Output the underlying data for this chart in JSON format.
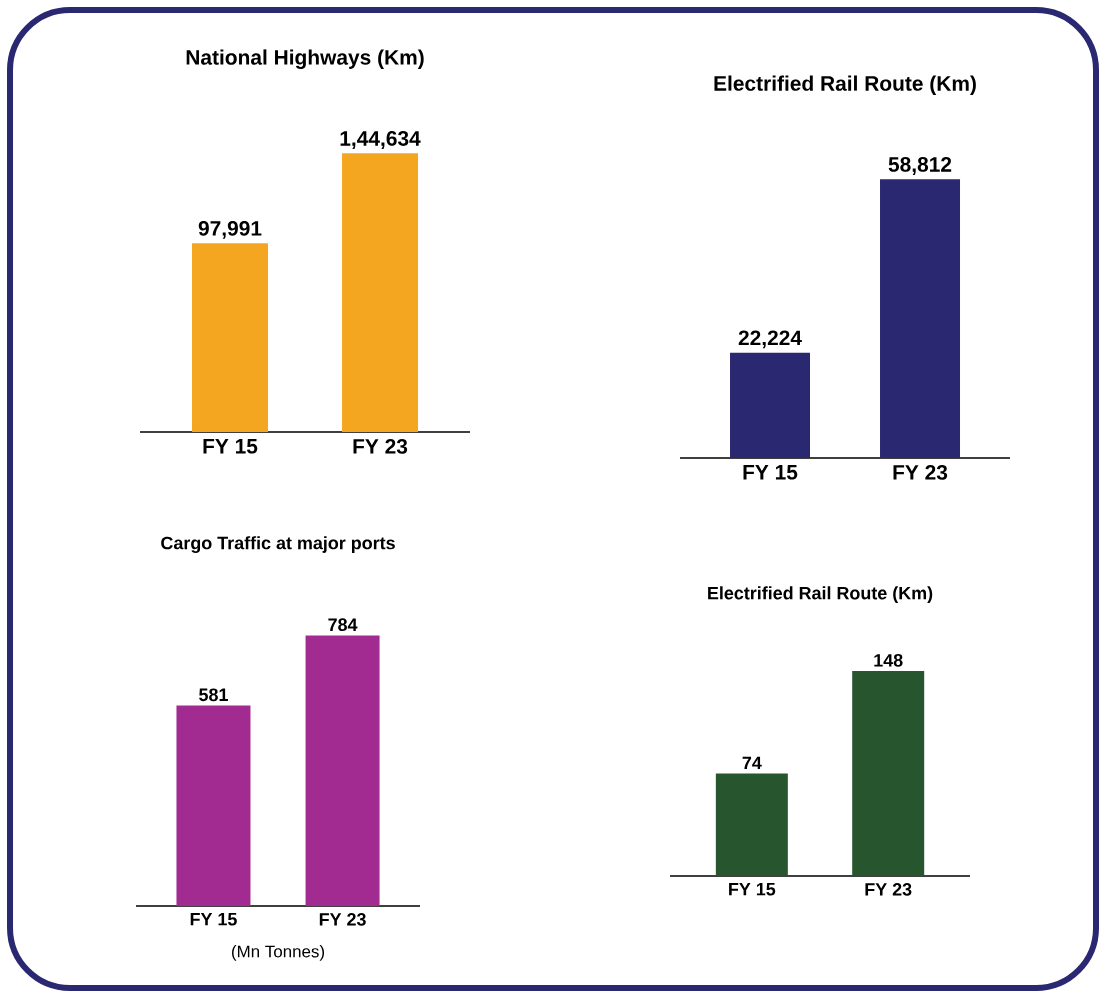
{
  "chart_data": [
    {
      "type": "bar",
      "title": "National Highways (Km)",
      "categories": [
        "FY 15",
        "FY 23"
      ],
      "values": [
        97991,
        144634
      ],
      "value_labels": [
        "97,991",
        "1,44,634"
      ],
      "color": "#f4a621"
    },
    {
      "type": "bar",
      "title": "Electrified Rail Route (Km)",
      "categories": [
        "FY 15",
        "FY 23"
      ],
      "values": [
        22224,
        58812
      ],
      "value_labels": [
        "22,224",
        "58,812"
      ],
      "color": "#2b2872"
    },
    {
      "type": "bar",
      "title": "Cargo Traffic at major ports",
      "categories": [
        "FY 15",
        "FY 23"
      ],
      "values": [
        581,
        784
      ],
      "data_labels": true,
      "color": "#a22b92",
      "annotations": [
        "(Mn Tonnes)"
      ]
    },
    {
      "type": "bar",
      "title": "Electrified Rail Route (Km)",
      "categories": [
        "FY 15",
        "FY 23"
      ],
      "values": [
        74,
        148
      ],
      "data_labels": true,
      "color": "#27552e"
    }
  ]
}
